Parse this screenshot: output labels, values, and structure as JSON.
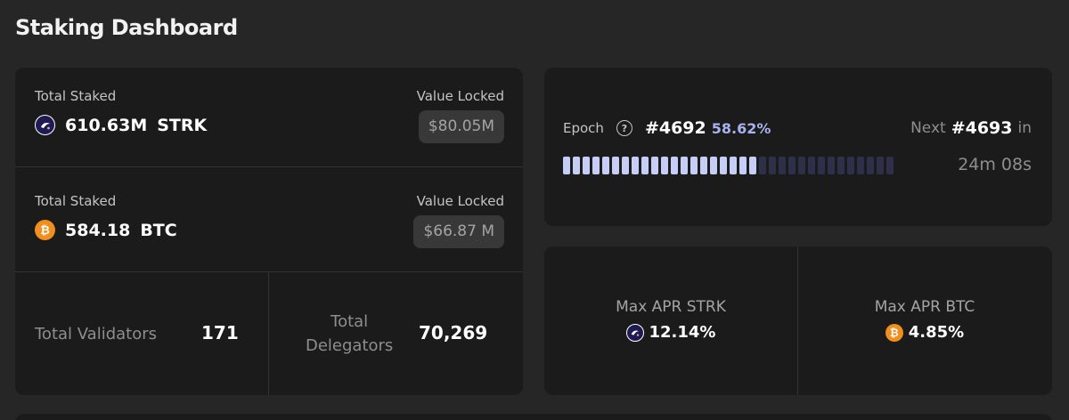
{
  "page": {
    "title": "Staking Dashboard"
  },
  "staking": {
    "strk": {
      "label": "Total Staked",
      "amount": "610.63M",
      "unit": "STRK",
      "value_label": "Value Locked",
      "value": "$80.05M",
      "icon": "strk-icon"
    },
    "btc": {
      "label": "Total Staked",
      "amount": "584.18",
      "unit": "BTC",
      "value_label": "Value Locked",
      "value": "$66.87 M",
      "icon": "btc-icon"
    }
  },
  "stats": {
    "validators": {
      "label": "Total Validators",
      "value": "171"
    },
    "delegators": {
      "label_line1": "Total",
      "label_line2": "Delegators",
      "value": "70,269"
    }
  },
  "epoch": {
    "label": "Epoch",
    "help_icon": "help-icon",
    "current": "#4692",
    "progress_text": "58.62%",
    "progress": 0.5862,
    "segments_total": 34,
    "next_prefix": "Next",
    "next": "#4693",
    "next_suffix": "in",
    "countdown": "24m 08s"
  },
  "apr": {
    "strk": {
      "label": "Max APR STRK",
      "value": "12.14%",
      "icon": "strk-icon"
    },
    "btc": {
      "label": "Max APR BTC",
      "value": "4.85%",
      "icon": "btc-icon"
    }
  },
  "colors": {
    "background": "#262626",
    "card": "#1b1b1b",
    "accent": "#a9b2ee",
    "segment_on": "#c7cef5",
    "segment_off": "#2d3048",
    "btc": "#f08f1d",
    "strk": "#1e1b54"
  }
}
